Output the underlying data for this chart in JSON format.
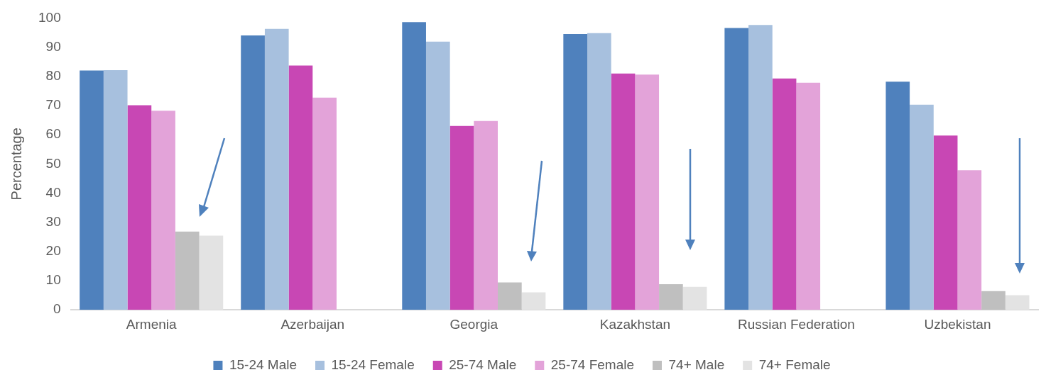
{
  "chart_data": {
    "type": "bar",
    "ylabel": "Percentage",
    "categories": [
      "Armenia",
      "Azerbaijan",
      "Georgia",
      "Kazakhstan",
      "Russian Federation",
      "Uzbekistan"
    ],
    "series": [
      {
        "name": "15-24 Male",
        "color": "#4f81bd",
        "values": [
          82,
          94,
          98.6,
          94.5,
          96.6,
          78.2
        ]
      },
      {
        "name": "15-24 Female",
        "color": "#a7c0de",
        "values": [
          82.1,
          96.3,
          91.9,
          94.8,
          97.6,
          70.3
        ]
      },
      {
        "name": "25-74 Male",
        "color": "#c847b4",
        "values": [
          70.1,
          83.7,
          63,
          81,
          79.3,
          59.7
        ]
      },
      {
        "name": "25-74 Female",
        "color": "#e3a3d9",
        "values": [
          68.2,
          72.7,
          64.7,
          80.6,
          77.8,
          47.8
        ]
      },
      {
        "name": "74+ Male",
        "color": "#bfbfbf",
        "values": [
          26.8,
          null,
          9.4,
          8.8,
          null,
          6.4
        ]
      },
      {
        "name": "74+ Female",
        "color": "#e3e3e3",
        "values": [
          25.4,
          null,
          6,
          7.9,
          null,
          5
        ]
      }
    ],
    "ylim": [
      0,
      100
    ],
    "yticks": [
      0,
      10,
      20,
      30,
      40,
      50,
      60,
      70,
      80,
      90,
      100
    ],
    "grid": false,
    "legend": "bottom"
  }
}
